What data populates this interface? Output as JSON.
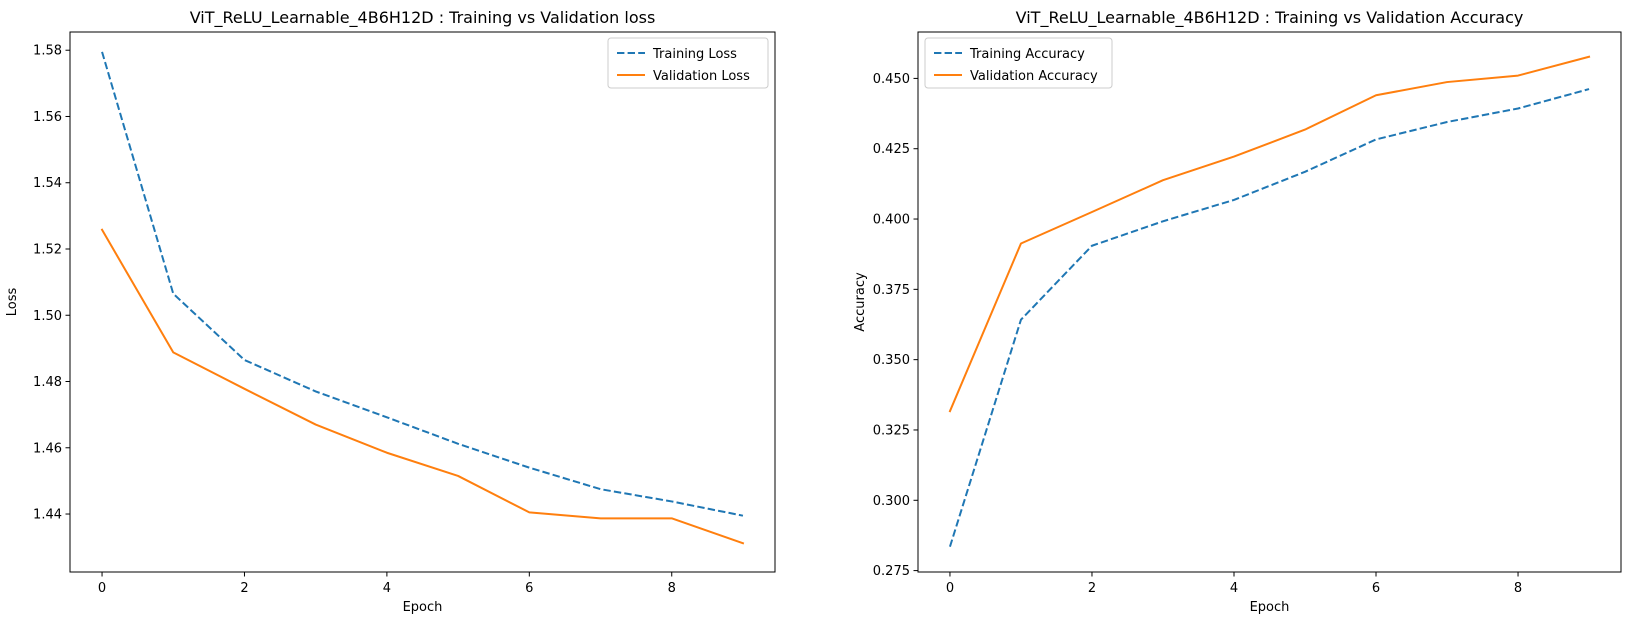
{
  "chart_data": [
    {
      "type": "line",
      "title": "ViT_ReLU_Learnable_4B6H12D : Training vs Validation loss",
      "xlabel": "Epoch",
      "ylabel": "Loss",
      "x": [
        0,
        1,
        2,
        3,
        4,
        5,
        6,
        7,
        8,
        9
      ],
      "xlim": [
        -0.45,
        9.45
      ],
      "ylim": [
        1.4225,
        1.5855
      ],
      "xticks": [
        0,
        2,
        4,
        6,
        8
      ],
      "yticks": [
        1.44,
        1.46,
        1.48,
        1.5,
        1.52,
        1.54,
        1.56,
        1.58
      ],
      "ytick_decimals": 2,
      "legend_position": "top-right",
      "grid": false,
      "series": [
        {
          "name": "Training Loss",
          "color": "#1f77b4",
          "linestyle": "dashed",
          "values": [
            1.5795,
            1.5065,
            1.4865,
            1.477,
            1.4692,
            1.4612,
            1.454,
            1.4475,
            1.4438,
            1.4395
          ]
        },
        {
          "name": "Validation Loss",
          "color": "#ff7f0e",
          "linestyle": "solid",
          "values": [
            1.5258,
            1.4888,
            1.4778,
            1.467,
            1.4585,
            1.4515,
            1.4405,
            1.4387,
            1.4387,
            1.4312
          ]
        }
      ]
    },
    {
      "type": "line",
      "title": "ViT_ReLU_Learnable_4B6H12D : Training vs Validation Accuracy",
      "xlabel": "Epoch",
      "ylabel": "Accuracy",
      "x": [
        0,
        1,
        2,
        3,
        4,
        5,
        6,
        7,
        8,
        9
      ],
      "xlim": [
        -0.45,
        9.45
      ],
      "ylim": [
        0.2745,
        0.4665
      ],
      "xticks": [
        0,
        2,
        4,
        6,
        8
      ],
      "yticks": [
        0.275,
        0.3,
        0.325,
        0.35,
        0.375,
        0.4,
        0.425,
        0.45
      ],
      "ytick_decimals": 3,
      "legend_position": "top-left",
      "grid": false,
      "series": [
        {
          "name": "Training Accuracy",
          "color": "#1f77b4",
          "linestyle": "dashed",
          "values": [
            0.2835,
            0.3642,
            0.3905,
            0.3992,
            0.4068,
            0.4168,
            0.4283,
            0.4345,
            0.4393,
            0.4462
          ]
        },
        {
          "name": "Validation Accuracy",
          "color": "#ff7f0e",
          "linestyle": "solid",
          "values": [
            0.3317,
            0.3913,
            0.4025,
            0.4138,
            0.4222,
            0.4318,
            0.444,
            0.4487,
            0.451,
            0.4577
          ]
        }
      ]
    }
  ]
}
